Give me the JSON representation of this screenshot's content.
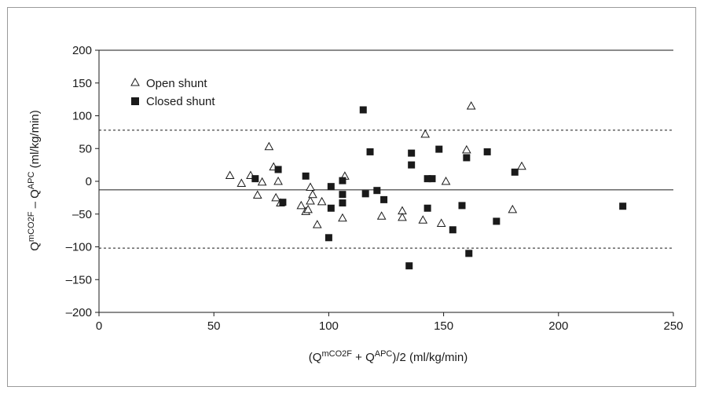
{
  "chart_data": {
    "type": "scatter",
    "xlim": [
      0,
      250
    ],
    "ylim": [
      -200,
      200
    ],
    "x_ticks": [
      "0",
      "50",
      "100",
      "150",
      "200",
      "250"
    ],
    "y_ticks": [
      "200",
      "150",
      "100",
      "50",
      "0",
      "–50",
      "–100",
      "–150",
      "–200"
    ],
    "x_tick_values": [
      0,
      50,
      100,
      150,
      200,
      250
    ],
    "y_tick_values": [
      200,
      150,
      100,
      50,
      0,
      -50,
      -100,
      -150,
      -200
    ],
    "xlabel": {
      "open": "(Q",
      "sup1": "mCO2F",
      "mid": " + Q",
      "sup2": "APC",
      "close": ")/2 (ml/kg/min)"
    },
    "ylabel": {
      "q1": "Q",
      "sup1": "mCO2F",
      "mid": " – Q",
      "sup2": "APC",
      "close": " (ml/kg/min)"
    },
    "reference_lines": {
      "mean": -13,
      "upper_limit": 78,
      "lower_limit": -102
    },
    "series": [
      {
        "name": "Open shunt",
        "marker": "open-triangle",
        "points": [
          [
            57,
            9
          ],
          [
            62,
            -3
          ],
          [
            66,
            9
          ],
          [
            69,
            -21
          ],
          [
            71,
            -1
          ],
          [
            74,
            53
          ],
          [
            76,
            22
          ],
          [
            77,
            -25
          ],
          [
            78,
            0
          ],
          [
            79,
            -33
          ],
          [
            88,
            -37
          ],
          [
            90,
            -46
          ],
          [
            91,
            -43
          ],
          [
            92,
            -9
          ],
          [
            92,
            -30
          ],
          [
            93,
            -20
          ],
          [
            95,
            -66
          ],
          [
            97,
            -31
          ],
          [
            106,
            -56
          ],
          [
            107,
            8
          ],
          [
            123,
            -53
          ],
          [
            132,
            -45
          ],
          [
            132,
            -55
          ],
          [
            141,
            -59
          ],
          [
            142,
            72
          ],
          [
            149,
            -64
          ],
          [
            151,
            0
          ],
          [
            160,
            48
          ],
          [
            162,
            115
          ],
          [
            180,
            -43
          ],
          [
            184,
            23
          ]
        ]
      },
      {
        "name": "Closed shunt",
        "marker": "filled-square",
        "points": [
          [
            68,
            4
          ],
          [
            78,
            18
          ],
          [
            80,
            -32
          ],
          [
            90,
            8
          ],
          [
            101,
            -8
          ],
          [
            101,
            -41
          ],
          [
            100,
            -86
          ],
          [
            106,
            1
          ],
          [
            106,
            -20
          ],
          [
            106,
            -33
          ],
          [
            115,
            109
          ],
          [
            116,
            -19
          ],
          [
            118,
            45
          ],
          [
            121,
            -14
          ],
          [
            124,
            -28
          ],
          [
            135,
            -129
          ],
          [
            136,
            25
          ],
          [
            136,
            43
          ],
          [
            143,
            4
          ],
          [
            143,
            -41
          ],
          [
            145,
            4
          ],
          [
            148,
            49
          ],
          [
            154,
            -74
          ],
          [
            158,
            -37
          ],
          [
            160,
            36
          ],
          [
            161,
            -110
          ],
          [
            169,
            45
          ],
          [
            173,
            -61
          ],
          [
            181,
            14
          ],
          [
            228,
            -38
          ]
        ]
      }
    ]
  }
}
